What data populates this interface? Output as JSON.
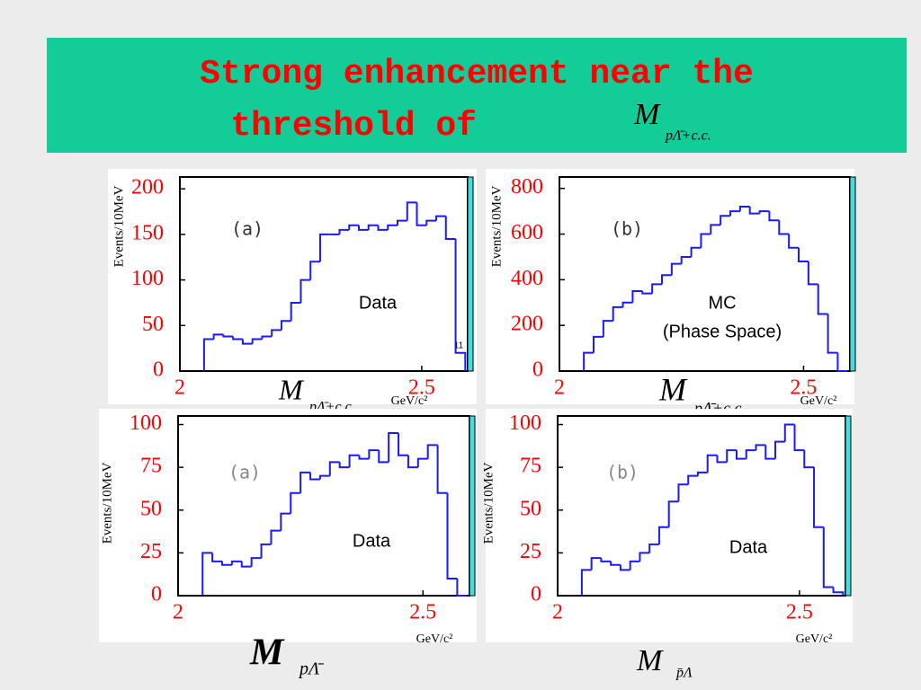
{
  "slide": {
    "title": "Strong enhancement near the",
    "title_line2": "threshold of",
    "title_symbol": "M",
    "title_subscript": "pΛ̄+c.c."
  },
  "chart_data": [
    {
      "type": "histogram",
      "panel_label": "(a)",
      "annotations": [
        "Data",
        "11"
      ],
      "ylabel": "Events/10MeV",
      "xlabel_symbol": "M",
      "xlabel_subscript": "pΛ̄+c.c.",
      "xlabel_unit": "GeV/c²",
      "xlim": [
        2,
        2.595
      ],
      "xticks": [
        2,
        2.5
      ],
      "ylim": [
        0,
        213
      ],
      "yticks": [
        0,
        50,
        100,
        150,
        200
      ],
      "color": "#1a1aff",
      "bins": [
        2.05,
        2.07,
        2.09,
        2.11,
        2.13,
        2.15,
        2.17,
        2.19,
        2.21,
        2.23,
        2.25,
        2.27,
        2.29,
        2.31,
        2.33,
        2.35,
        2.37,
        2.39,
        2.41,
        2.43,
        2.45,
        2.47,
        2.49,
        2.51,
        2.53,
        2.55,
        2.57,
        2.59
      ],
      "values": [
        35,
        40,
        38,
        35,
        30,
        35,
        38,
        45,
        55,
        75,
        100,
        120,
        150,
        150,
        155,
        160,
        155,
        160,
        155,
        160,
        165,
        185,
        160,
        165,
        170,
        145,
        20
      ]
    },
    {
      "type": "histogram",
      "panel_label": "(b)",
      "annotations": [
        "MC",
        "(Phase Space)"
      ],
      "ylabel": "Events/10MeV",
      "xlabel_symbol": "M",
      "xlabel_subscript": "pΛ̄+c.c.",
      "xlabel_unit": "GeV/c²",
      "xlim": [
        2,
        2.595
      ],
      "xticks": [
        2,
        2.5
      ],
      "ylim": [
        0,
        850
      ],
      "yticks": [
        0,
        200,
        400,
        600,
        800
      ],
      "color": "#1a1aff",
      "bins": [
        2.05,
        2.07,
        2.09,
        2.11,
        2.13,
        2.15,
        2.17,
        2.19,
        2.21,
        2.23,
        2.25,
        2.27,
        2.29,
        2.31,
        2.33,
        2.35,
        2.37,
        2.39,
        2.41,
        2.43,
        2.45,
        2.47,
        2.49,
        2.51,
        2.53,
        2.55,
        2.57,
        2.59
      ],
      "values": [
        80,
        150,
        220,
        280,
        300,
        350,
        340,
        380,
        420,
        470,
        500,
        540,
        600,
        640,
        680,
        700,
        720,
        690,
        700,
        660,
        600,
        540,
        480,
        380,
        250,
        80,
        0
      ]
    },
    {
      "type": "histogram",
      "panel_label": "(a)",
      "annotations": [
        "Data"
      ],
      "ylabel": "Events/10MeV",
      "xlabel_symbol": "M",
      "xlabel_subscript": "pΛ̄",
      "xlabel_unit": "GeV/c²",
      "xlim": [
        2,
        2.595
      ],
      "xticks": [
        2,
        2.5
      ],
      "ylim": [
        0,
        105
      ],
      "yticks": [
        0,
        25,
        50,
        75,
        100
      ],
      "color": "#1a1aff",
      "bins": [
        2.05,
        2.07,
        2.09,
        2.11,
        2.13,
        2.15,
        2.17,
        2.19,
        2.21,
        2.23,
        2.25,
        2.27,
        2.29,
        2.31,
        2.33,
        2.35,
        2.37,
        2.39,
        2.41,
        2.43,
        2.45,
        2.47,
        2.49,
        2.51,
        2.53,
        2.55,
        2.57,
        2.59
      ],
      "values": [
        25,
        20,
        18,
        20,
        17,
        22,
        30,
        38,
        48,
        60,
        72,
        68,
        70,
        78,
        75,
        82,
        80,
        85,
        78,
        95,
        82,
        75,
        80,
        88,
        60,
        10,
        0
      ]
    },
    {
      "type": "histogram",
      "panel_label": "(b)",
      "annotations": [
        "Data"
      ],
      "ylabel": "Events/10MeV",
      "xlabel_symbol": "M",
      "xlabel_subscript": "p̄Λ",
      "xlabel_unit": "GeV/c²",
      "xlim": [
        2,
        2.595
      ],
      "xticks": [
        2,
        2.5
      ],
      "ylim": [
        0,
        105
      ],
      "yticks": [
        0,
        25,
        50,
        75,
        100
      ],
      "color": "#1a1aff",
      "bins": [
        2.05,
        2.07,
        2.09,
        2.11,
        2.13,
        2.15,
        2.17,
        2.19,
        2.21,
        2.23,
        2.25,
        2.27,
        2.29,
        2.31,
        2.33,
        2.35,
        2.37,
        2.39,
        2.41,
        2.43,
        2.45,
        2.47,
        2.49,
        2.51,
        2.53,
        2.55,
        2.57,
        2.59
      ],
      "values": [
        15,
        22,
        20,
        18,
        15,
        20,
        25,
        30,
        40,
        55,
        65,
        70,
        72,
        82,
        78,
        85,
        80,
        85,
        88,
        80,
        90,
        100,
        85,
        75,
        40,
        5,
        2
      ]
    }
  ]
}
